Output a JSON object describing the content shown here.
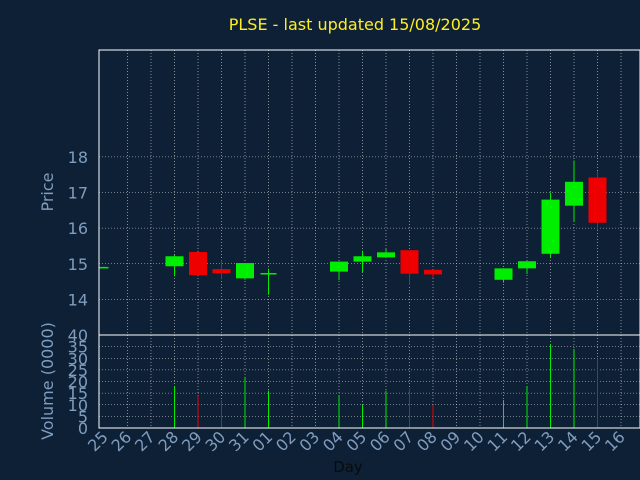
{
  "colors": {
    "background": "#0e2036",
    "plot_background": "#0e2036",
    "title": "#ffee22",
    "axis_text": "#7f9dbe",
    "grid": "#d8d8d8",
    "up": "#00ee00",
    "down": "#ee0000",
    "frame": "#ffffff"
  },
  "chart_data": {
    "type": "candlestick",
    "title": "PLSE - last updated 15/08/2025",
    "xlabel": "Day",
    "price_panel": {
      "ylabel": "Price",
      "ylim": [
        13,
        21
      ],
      "yticks": [
        14,
        15,
        16,
        17,
        18
      ]
    },
    "volume_panel": {
      "ylabel": "Volume (0000)",
      "ylim": [
        0,
        40
      ],
      "yticks": [
        0,
        5,
        10,
        15,
        20,
        25,
        30,
        35,
        40
      ]
    },
    "grid": true,
    "x_tick_labels": [
      "25",
      "26",
      "27",
      "28",
      "29",
      "30",
      "31",
      "01",
      "02",
      "03",
      "04",
      "05",
      "06",
      "07",
      "08",
      "09",
      "10",
      "11",
      "12",
      "13",
      "14",
      "15",
      "16"
    ],
    "candles": [
      {
        "day": "25",
        "open": 14.9,
        "close": 14.91,
        "high": 14.92,
        "low": 14.89,
        "volume": 0,
        "dir": "up"
      },
      {
        "day": "28",
        "open": 14.93,
        "close": 15.21,
        "high": 15.25,
        "low": 14.65,
        "volume": 18,
        "dir": "up"
      },
      {
        "day": "29",
        "open": 15.33,
        "close": 14.68,
        "high": 15.33,
        "low": 14.68,
        "volume": 14,
        "dir": "down"
      },
      {
        "day": "30",
        "open": 14.85,
        "close": 14.73,
        "high": 15.1,
        "low": 14.58,
        "volume": 12,
        "dir": "down"
      },
      {
        "day": "31",
        "open": 14.59,
        "close": 15.02,
        "high": 15.02,
        "low": 14.55,
        "volume": 22,
        "dir": "up"
      },
      {
        "day": "01",
        "open": 14.72,
        "close": 14.74,
        "high": 14.86,
        "low": 14.13,
        "volume": 16,
        "dir": "up"
      },
      {
        "day": "04",
        "open": 14.78,
        "close": 15.06,
        "high": 15.06,
        "low": 14.54,
        "volume": 14,
        "dir": "up"
      },
      {
        "day": "05",
        "open": 15.06,
        "close": 15.21,
        "high": 15.37,
        "low": 14.76,
        "volume": 10,
        "dir": "up"
      },
      {
        "day": "06",
        "open": 15.18,
        "close": 15.32,
        "high": 15.42,
        "low": 15.18,
        "volume": 16,
        "dir": "up"
      },
      {
        "day": "07",
        "open": 15.38,
        "close": 14.72,
        "high": 15.38,
        "low": 14.4,
        "volume": 17,
        "dir": "down"
      },
      {
        "day": "08",
        "open": 14.83,
        "close": 14.7,
        "high": 14.83,
        "low": 14.6,
        "volume": 10,
        "dir": "down"
      },
      {
        "day": "11",
        "open": 14.55,
        "close": 14.87,
        "high": 14.87,
        "low": 14.47,
        "volume": 12,
        "dir": "up"
      },
      {
        "day": "12",
        "open": 14.87,
        "close": 15.07,
        "high": 15.07,
        "low": 14.71,
        "volume": 18,
        "dir": "up"
      },
      {
        "day": "13",
        "open": 15.28,
        "close": 16.8,
        "high": 17.0,
        "low": 15.18,
        "volume": 36,
        "dir": "up"
      },
      {
        "day": "14",
        "open": 16.63,
        "close": 17.3,
        "high": 17.9,
        "low": 16.18,
        "volume": 34,
        "dir": "up"
      },
      {
        "day": "15",
        "open": 17.42,
        "close": 16.15,
        "high": 17.6,
        "low": 15.94,
        "volume": 30,
        "dir": "down"
      }
    ]
  }
}
